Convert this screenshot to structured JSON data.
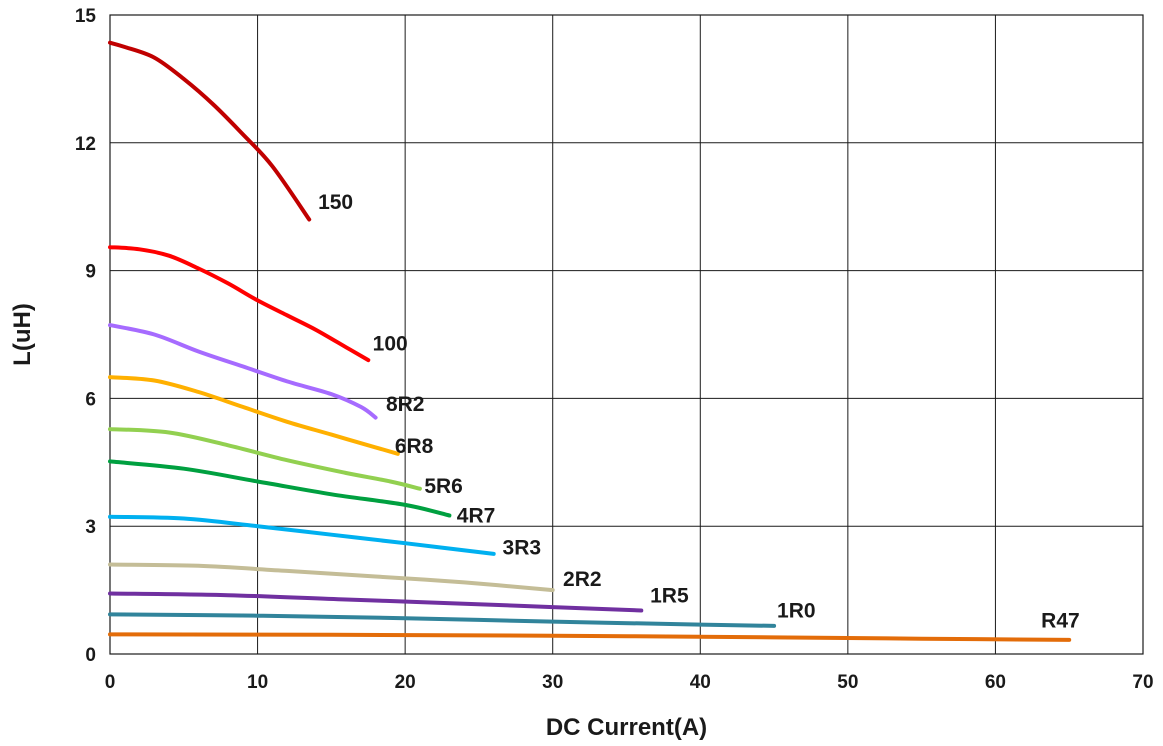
{
  "chart_data": {
    "type": "line",
    "title": "",
    "xlabel": "DC Current(A)",
    "ylabel": "L(uH)",
    "xlim": [
      0,
      70
    ],
    "ylim": [
      0,
      15
    ],
    "xticks": [
      0,
      10,
      20,
      30,
      40,
      50,
      60,
      70
    ],
    "yticks": [
      0,
      3,
      6,
      9,
      12,
      15
    ],
    "grid": true,
    "legend": "none",
    "series": [
      {
        "name": "150",
        "color": "#c00000",
        "x": [
          0,
          1,
          3,
          5,
          7,
          9,
          11,
          13.5
        ],
        "y": [
          14.35,
          14.25,
          14.0,
          13.5,
          12.9,
          12.2,
          11.45,
          10.2
        ]
      },
      {
        "name": "100",
        "color": "#ff0000",
        "x": [
          0,
          2,
          4,
          6,
          8,
          10,
          12,
          14,
          16,
          17.5
        ],
        "y": [
          9.55,
          9.5,
          9.35,
          9.05,
          8.7,
          8.3,
          7.95,
          7.6,
          7.2,
          6.9
        ]
      },
      {
        "name": "8R2",
        "color": "#a66bff",
        "x": [
          0,
          3,
          6,
          9,
          12,
          15,
          17,
          18
        ],
        "y": [
          7.72,
          7.5,
          7.1,
          6.75,
          6.4,
          6.1,
          5.8,
          5.55
        ]
      },
      {
        "name": "6R8",
        "color": "#ffb000",
        "x": [
          0,
          3,
          6,
          9,
          12,
          15,
          18,
          19.5
        ],
        "y": [
          6.5,
          6.42,
          6.15,
          5.8,
          5.45,
          5.15,
          4.85,
          4.7
        ]
      },
      {
        "name": "5R6",
        "color": "#92d050",
        "x": [
          0,
          4,
          8,
          12,
          16,
          19,
          21
        ],
        "y": [
          5.28,
          5.2,
          4.9,
          4.55,
          4.25,
          4.05,
          3.88
        ]
      },
      {
        "name": "4R7",
        "color": "#00a040",
        "x": [
          0,
          5,
          10,
          15,
          20,
          23
        ],
        "y": [
          4.52,
          4.35,
          4.05,
          3.75,
          3.5,
          3.25
        ]
      },
      {
        "name": "3R3",
        "color": "#00b0f0",
        "x": [
          0,
          5,
          10,
          15,
          20,
          26
        ],
        "y": [
          3.22,
          3.18,
          3.0,
          2.8,
          2.6,
          2.35
        ]
      },
      {
        "name": "2R2",
        "color": "#c4bd97",
        "x": [
          0,
          6,
          12,
          18,
          24,
          30
        ],
        "y": [
          2.1,
          2.07,
          1.95,
          1.82,
          1.68,
          1.5
        ]
      },
      {
        "name": "1R5",
        "color": "#7030a0",
        "x": [
          0,
          8,
          16,
          24,
          30,
          36
        ],
        "y": [
          1.42,
          1.38,
          1.28,
          1.18,
          1.1,
          1.02
        ]
      },
      {
        "name": "1R0",
        "color": "#31849b",
        "x": [
          0,
          10,
          20,
          30,
          40,
          45
        ],
        "y": [
          0.93,
          0.9,
          0.84,
          0.76,
          0.69,
          0.66
        ]
      },
      {
        "name": "R47",
        "color": "#e36c09",
        "x": [
          0,
          15,
          30,
          45,
          55,
          65
        ],
        "y": [
          0.46,
          0.45,
          0.43,
          0.39,
          0.36,
          0.33
        ]
      }
    ],
    "annotations": [
      {
        "text": "150",
        "x": 14.1,
        "y": 10.45
      },
      {
        "text": "100",
        "x": 17.8,
        "y": 7.12
      },
      {
        "text": "8R2",
        "x": 18.7,
        "y": 5.7
      },
      {
        "text": "6R8",
        "x": 19.3,
        "y": 4.72
      },
      {
        "text": "5R6",
        "x": 21.3,
        "y": 3.78
      },
      {
        "text": "4R7",
        "x": 23.5,
        "y": 3.09
      },
      {
        "text": "3R3",
        "x": 26.6,
        "y": 2.34
      },
      {
        "text": "2R2",
        "x": 30.7,
        "y": 1.6
      },
      {
        "text": "1R5",
        "x": 36.6,
        "y": 1.21
      },
      {
        "text": "1R0",
        "x": 45.2,
        "y": 0.86
      },
      {
        "text": "R47",
        "x": 63.1,
        "y": 0.62
      }
    ]
  }
}
